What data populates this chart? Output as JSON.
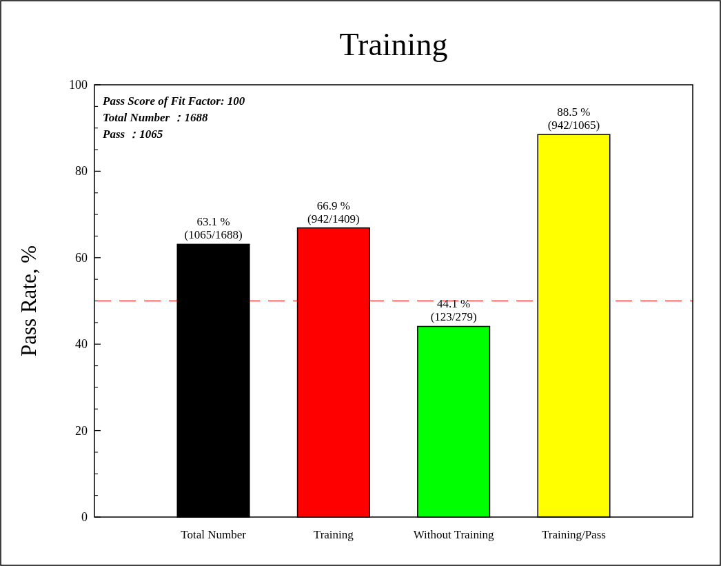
{
  "chart_data": {
    "type": "bar",
    "title": "Training",
    "ylabel": "Pass Rate, %",
    "categories": [
      "Total Number",
      "Training",
      "Without Training",
      "Training/Pass"
    ],
    "values": [
      63.1,
      66.9,
      44.1,
      88.5
    ],
    "colors": [
      "#000000",
      "#ff0000",
      "#00ff00",
      "#ffff00"
    ],
    "value_labels": [
      "63.1 %\n(1065/1688)",
      "66.9 %\n(942/1409)",
      "44.1 %\n(123/279)",
      "88.5 %\n(942/1065)"
    ],
    "ylim": [
      0,
      100
    ],
    "yticks": [
      0,
      20,
      40,
      60,
      80,
      100
    ],
    "ref_lines": [
      {
        "axis": "y",
        "value": 50,
        "color": "#ff0000",
        "line_style": "dashed"
      }
    ],
    "annotations": [
      "Pass Score of Fit Factor: 100",
      "Total Number ：1688",
      "Pass ：1065"
    ]
  }
}
